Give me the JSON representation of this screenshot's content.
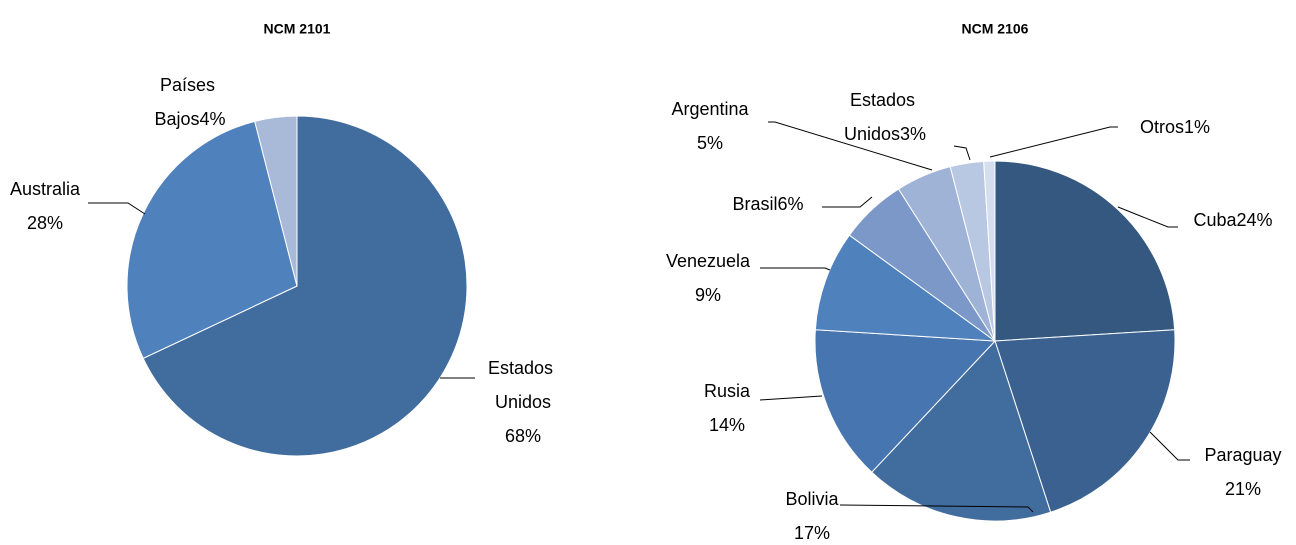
{
  "chart_data": [
    {
      "type": "pie",
      "title": "NCM 2101",
      "categories": [
        "Estados Unidos",
        "Australia",
        "Países Bajos"
      ],
      "values": [
        68,
        28,
        4
      ],
      "value_labels": [
        "68%",
        "28%",
        "4%"
      ],
      "colors": [
        "#416c9e",
        "#4f81bd",
        "#a9b9d8"
      ]
    },
    {
      "type": "pie",
      "title": "NCM 2106",
      "categories": [
        "Cuba",
        "Paraguay",
        "Bolivia",
        "Rusia",
        "Venezuela",
        "Brasil",
        "Argentina",
        "Estados Unidos",
        "Otros"
      ],
      "values": [
        24,
        21,
        17,
        14,
        9,
        6,
        5,
        3,
        1
      ],
      "value_labels": [
        "24%",
        "21%",
        "17%",
        "14%",
        "9%",
        "6%",
        "5%",
        "3%",
        "1%"
      ],
      "colors": [
        "#34587f",
        "#3b6190",
        "#416c9e",
        "#4675af",
        "#4f81bd",
        "#7b98c8",
        "#9fb3d6",
        "#b9c8e2",
        "#d5deee"
      ]
    }
  ]
}
